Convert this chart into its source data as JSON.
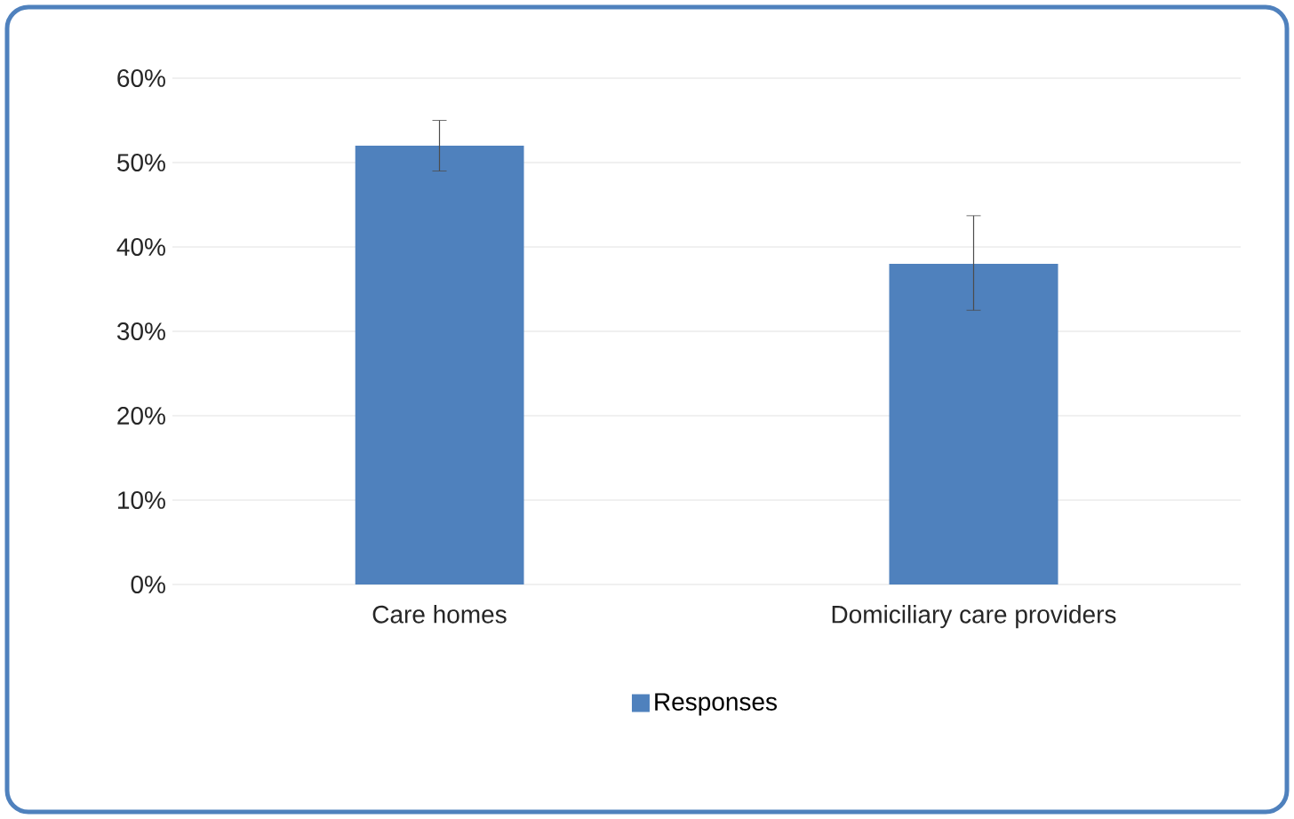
{
  "chart_data": {
    "type": "bar",
    "categories": [
      "Care homes",
      "Domiciliary care providers"
    ],
    "series": [
      {
        "name": "Responses",
        "color": "#4f81bd",
        "values": [
          52,
          38
        ],
        "errors": [
          [
            49,
            55
          ],
          [
            32.5,
            43.7
          ]
        ]
      }
    ],
    "ylim": [
      0,
      60
    ],
    "yticks": [
      {
        "value": 0,
        "label": "0%"
      },
      {
        "value": 10,
        "label": "10%"
      },
      {
        "value": 20,
        "label": "20%"
      },
      {
        "value": 30,
        "label": "30%"
      },
      {
        "value": 40,
        "label": "40%"
      },
      {
        "value": 50,
        "label": "50%"
      },
      {
        "value": 60,
        "label": "60%"
      }
    ],
    "grid": "y",
    "legend": "bottom"
  }
}
